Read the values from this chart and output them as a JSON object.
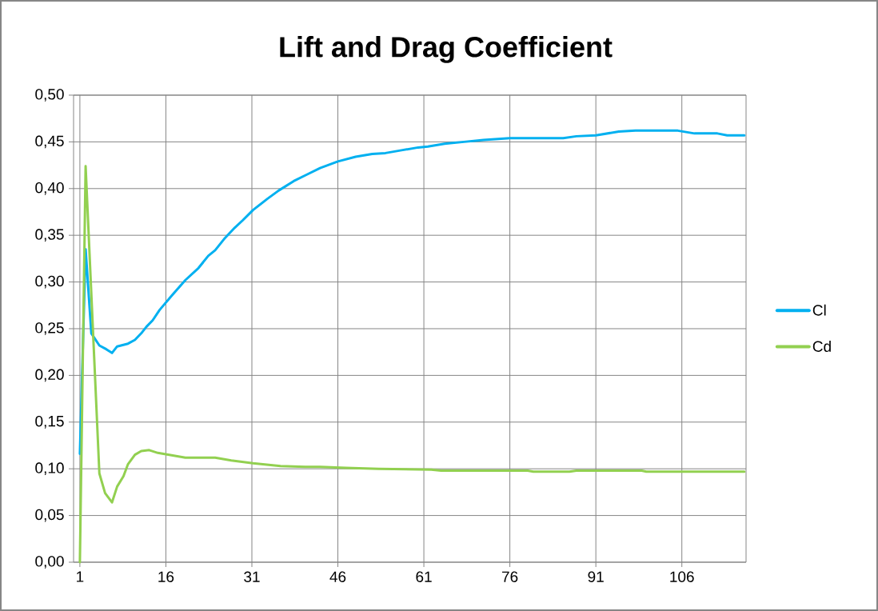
{
  "chart_data": {
    "type": "line",
    "title": "Lift and Drag Coefficient",
    "xlim": [
      -0.1,
      117.2
    ],
    "xticks": [
      1,
      16,
      31,
      46,
      61,
      76,
      91,
      106
    ],
    "ylim": [
      0,
      0.5
    ],
    "yticks": [
      {
        "value": 0,
        "label": "0,00"
      },
      {
        "value": 0.05,
        "label": "0,05"
      },
      {
        "value": 0.1,
        "label": "0,10"
      },
      {
        "value": 0.15,
        "label": "0,15"
      },
      {
        "value": 0.2,
        "label": "0,20"
      },
      {
        "value": 0.25,
        "label": "0,25"
      },
      {
        "value": 0.3,
        "label": "0,30"
      },
      {
        "value": 0.35,
        "label": "0,35"
      },
      {
        "value": 0.4,
        "label": "0,40"
      },
      {
        "value": 0.45,
        "label": "0,45"
      },
      {
        "value": 0.5,
        "label": "0,50"
      }
    ],
    "grid": true,
    "legend": "right",
    "marker": "none",
    "line_style": "solid",
    "series": [
      {
        "name": "Cl",
        "color": "#00b0f0",
        "x": [
          1,
          2,
          3,
          4.4,
          5.6,
          6.6,
          7.5,
          9.4,
          10.6,
          11.7,
          12.6,
          13.7,
          14.9,
          17.1,
          19.4,
          21.7,
          23.4,
          24.6,
          26.3,
          28,
          29.4,
          31.2,
          33.7,
          35.7,
          38.3,
          40.6,
          42.9,
          46,
          49.1,
          52,
          54.3,
          57.1,
          60,
          61.7,
          64.6,
          68,
          71.4,
          76,
          85.3,
          87.6,
          91,
          95,
          97.9,
          105.3,
          108.2,
          112.2,
          113.9,
          116.9
        ],
        "values": [
          0.116,
          0.335,
          0.245,
          0.232,
          0.228,
          0.224,
          0.231,
          0.234,
          0.238,
          0.245,
          0.252,
          0.259,
          0.27,
          0.286,
          0.302,
          0.315,
          0.328,
          0.334,
          0.347,
          0.358,
          0.366,
          0.377,
          0.389,
          0.398,
          0.408,
          0.415,
          0.422,
          0.429,
          0.434,
          0.437,
          0.438,
          0.441,
          0.444,
          0.445,
          0.448,
          0.45,
          0.452,
          0.454,
          0.454,
          0.456,
          0.457,
          0.461,
          0.462,
          0.462,
          0.459,
          0.459,
          0.457,
          0.457
        ]
      },
      {
        "name": "Cd",
        "color": "#92d050",
        "x": [
          1,
          2,
          4.4,
          5.4,
          6.6,
          7.5,
          8.6,
          9.4,
          10.6,
          11.7,
          13.1,
          14.6,
          16.6,
          19.4,
          24.6,
          27.4,
          31.2,
          36,
          40.3,
          42.9,
          47.4,
          53.1,
          62.3,
          64,
          79.1,
          80.1,
          86.4,
          87.6,
          99,
          99.8,
          116.9
        ],
        "values": [
          0,
          0.424,
          0.095,
          0.074,
          0.064,
          0.081,
          0.092,
          0.105,
          0.115,
          0.119,
          0.12,
          0.117,
          0.115,
          0.112,
          0.112,
          0.109,
          0.106,
          0.103,
          0.102,
          0.102,
          0.101,
          0.1,
          0.099,
          0.098,
          0.098,
          0.097,
          0.097,
          0.098,
          0.098,
          0.097,
          0.097
        ]
      }
    ]
  }
}
